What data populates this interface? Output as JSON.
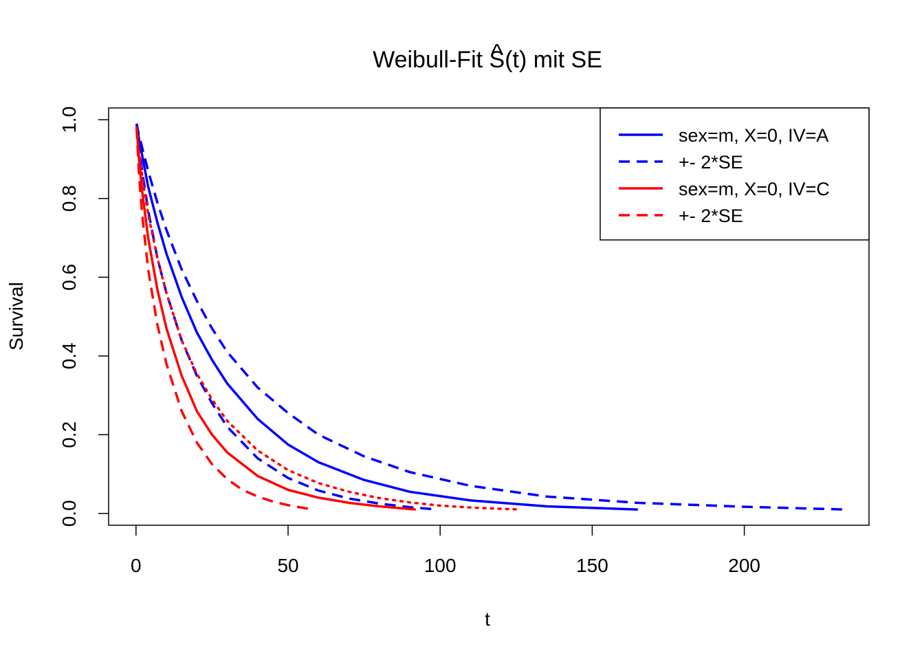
{
  "chart_data": {
    "type": "line",
    "title_prefix": "Weibull-Fit ",
    "title_symbol": "S",
    "title_hat": "^",
    "title_arg": "(t)",
    "title_suffix": " mit SE",
    "xlabel": "t",
    "ylabel": "Survival",
    "xlim": [
      -9,
      241
    ],
    "ylim": [
      -0.03,
      1.03
    ],
    "x_ticks": [
      0,
      50,
      100,
      150,
      200
    ],
    "x_tick_labels": [
      "0",
      "50",
      "100",
      "150",
      "200"
    ],
    "y_ticks": [
      0.0,
      0.2,
      0.4,
      0.6,
      0.8,
      1.0
    ],
    "y_tick_labels": [
      "0.0",
      "0.2",
      "0.4",
      "0.6",
      "0.8",
      "1.0"
    ],
    "legend_position": "top-right",
    "grid": false,
    "colors": {
      "blue": "#0000ff",
      "red": "#ff0000"
    },
    "series": [
      {
        "name": "sex=m, X=0, IV=A",
        "color": "#0000ff",
        "style": "solid",
        "x": [
          0.2,
          1,
          2,
          4,
          7,
          10,
          15,
          20,
          25,
          30,
          40,
          50,
          60,
          75,
          90,
          110,
          135,
          165
        ],
        "y": [
          0.99,
          0.95,
          0.91,
          0.83,
          0.74,
          0.66,
          0.55,
          0.46,
          0.39,
          0.33,
          0.24,
          0.175,
          0.13,
          0.085,
          0.055,
          0.033,
          0.018,
          0.01
        ]
      },
      {
        "name": "+- 2*SE",
        "color": "#0000ff",
        "style": "dashed",
        "x": [
          0.2,
          1,
          2,
          4,
          7,
          10,
          15,
          20,
          25,
          30,
          40,
          50,
          60,
          75,
          90,
          110,
          135,
          165,
          200,
          233
        ],
        "y": [
          0.99,
          0.96,
          0.93,
          0.87,
          0.79,
          0.72,
          0.62,
          0.54,
          0.47,
          0.41,
          0.32,
          0.255,
          0.2,
          0.145,
          0.105,
          0.07,
          0.043,
          0.027,
          0.017,
          0.01
        ]
      },
      {
        "name": "",
        "color": "#0000ff",
        "style": "dashed",
        "x": [
          0.2,
          1,
          2,
          4,
          7,
          10,
          15,
          20,
          25,
          30,
          40,
          50,
          60,
          70,
          80,
          90,
          99
        ],
        "y": [
          0.99,
          0.93,
          0.87,
          0.77,
          0.65,
          0.56,
          0.44,
          0.35,
          0.28,
          0.22,
          0.14,
          0.09,
          0.058,
          0.038,
          0.025,
          0.016,
          0.01
        ]
      },
      {
        "name": "sex=m, X=0, IV=C",
        "color": "#ff0000",
        "style": "solid",
        "x": [
          0.2,
          1,
          2,
          4,
          7,
          10,
          15,
          20,
          25,
          30,
          40,
          50,
          60,
          70,
          80,
          92
        ],
        "y": [
          0.98,
          0.9,
          0.82,
          0.7,
          0.57,
          0.47,
          0.35,
          0.26,
          0.2,
          0.155,
          0.095,
          0.06,
          0.04,
          0.027,
          0.018,
          0.01
        ]
      },
      {
        "name": "+- 2*SE",
        "color": "#ff0000",
        "style": "dashed",
        "x": [
          0.2,
          1,
          2,
          4,
          7,
          10,
          15,
          20,
          25,
          30,
          35,
          40,
          45,
          50,
          58
        ],
        "y": [
          0.98,
          0.86,
          0.76,
          0.62,
          0.48,
          0.38,
          0.26,
          0.18,
          0.125,
          0.087,
          0.06,
          0.043,
          0.03,
          0.021,
          0.01
        ]
      },
      {
        "name": "",
        "color": "#ff0000",
        "style": "dotted",
        "x": [
          0.2,
          1,
          2,
          4,
          7,
          10,
          15,
          20,
          25,
          30,
          40,
          50,
          60,
          70,
          80,
          90,
          100,
          110,
          126
        ],
        "y": [
          0.98,
          0.92,
          0.86,
          0.76,
          0.65,
          0.56,
          0.44,
          0.355,
          0.29,
          0.235,
          0.16,
          0.11,
          0.077,
          0.055,
          0.039,
          0.028,
          0.02,
          0.015,
          0.01
        ]
      }
    ],
    "legend": [
      {
        "label": "sex=m, X=0, IV=A",
        "color": "#0000ff",
        "style": "solid"
      },
      {
        "label": "+- 2*SE",
        "color": "#0000ff",
        "style": "dashed"
      },
      {
        "label": "sex=m, X=0, IV=C",
        "color": "#ff0000",
        "style": "solid"
      },
      {
        "label": "+- 2*SE",
        "color": "#ff0000",
        "style": "dashed"
      }
    ]
  }
}
